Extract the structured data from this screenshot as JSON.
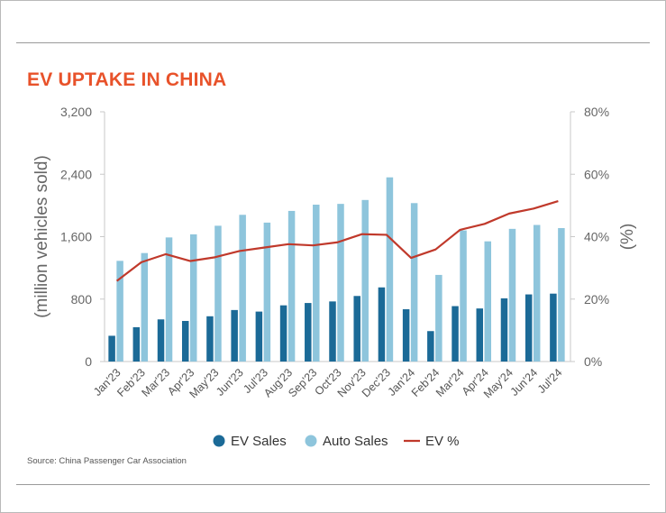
{
  "chart_data": {
    "type": "bar",
    "title": "EV UPTAKE IN CHINA",
    "ylabel": "(million vehicles sold)",
    "y2label": "(%)",
    "ylim": [
      0,
      3200
    ],
    "y2lim": [
      0,
      80
    ],
    "yticks": [
      "0",
      "800",
      "1,600",
      "2,400",
      "3,200"
    ],
    "y2ticks": [
      "0%",
      "20%",
      "40%",
      "60%",
      "80%"
    ],
    "categories": [
      "Jan'23",
      "Feb'23",
      "Mar'23",
      "Apr'23",
      "May'23",
      "Jun'23",
      "Jul'23",
      "Aug'23",
      "Sep'23",
      "Oct'23",
      "Nov'23",
      "Dec'23",
      "Jan'24",
      "Feb'24",
      "Mar'24",
      "Apr'24",
      "May'24",
      "Jun'24",
      "Jul'24"
    ],
    "series": [
      {
        "name": "EV Sales",
        "type": "bar",
        "color": "#1b6a97",
        "axis": "left",
        "values": [
          330,
          440,
          540,
          520,
          580,
          660,
          640,
          720,
          750,
          770,
          840,
          950,
          670,
          390,
          710,
          680,
          810,
          860,
          870
        ]
      },
      {
        "name": "Auto Sales",
        "type": "bar",
        "color": "#8ec5dc",
        "axis": "left",
        "values": [
          1290,
          1390,
          1590,
          1630,
          1740,
          1880,
          1780,
          1930,
          2010,
          2020,
          2070,
          2360,
          2030,
          1110,
          1680,
          1540,
          1700,
          1750,
          1710
        ]
      },
      {
        "name": "EV %",
        "type": "line",
        "color": "#c0392b",
        "axis": "right",
        "values": [
          25.8,
          31.8,
          34.4,
          32.2,
          33.4,
          35.4,
          36.5,
          37.6,
          37.2,
          38.2,
          40.8,
          40.6,
          33.2,
          35.9,
          42.2,
          44.1,
          47.4,
          49.0,
          51.4
        ]
      }
    ],
    "legend_position": "bottom",
    "grid": false
  },
  "source": "Source: China Passenger Car Association"
}
